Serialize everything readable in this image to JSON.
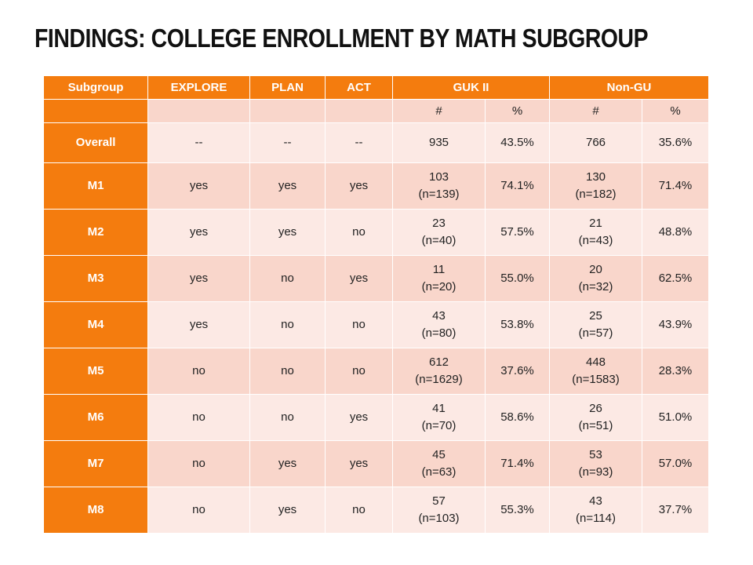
{
  "title": "FINDINGS: COLLEGE ENROLLMENT BY MATH SUBGROUP",
  "headers": [
    "Subgroup",
    "EXPLORE",
    "PLAN",
    "ACT",
    "GUK II",
    "Non-GU"
  ],
  "subheaders": [
    "#",
    "%",
    "#",
    "%"
  ],
  "rows": [
    {
      "label": "Overall",
      "explore": "--",
      "plan": "--",
      "act": "--",
      "gu_count": "935",
      "gu_n": "",
      "gu_pct": "43.5%",
      "ngu_count": "766",
      "ngu_n": "",
      "ngu_pct": "35.6%"
    },
    {
      "label": "M1",
      "explore": "yes",
      "plan": "yes",
      "act": "yes",
      "gu_count": "103",
      "gu_n": "(n=139)",
      "gu_pct": "74.1%",
      "ngu_count": "130",
      "ngu_n": "(n=182)",
      "ngu_pct": "71.4%"
    },
    {
      "label": "M2",
      "explore": "yes",
      "plan": "yes",
      "act": "no",
      "gu_count": "23",
      "gu_n": "(n=40)",
      "gu_pct": "57.5%",
      "ngu_count": "21",
      "ngu_n": "(n=43)",
      "ngu_pct": "48.8%"
    },
    {
      "label": "M3",
      "explore": "yes",
      "plan": "no",
      "act": "yes",
      "gu_count": "11",
      "gu_n": "(n=20)",
      "gu_pct": "55.0%",
      "ngu_count": "20",
      "ngu_n": "(n=32)",
      "ngu_pct": "62.5%"
    },
    {
      "label": "M4",
      "explore": "yes",
      "plan": "no",
      "act": "no",
      "gu_count": "43",
      "gu_n": "(n=80)",
      "gu_pct": "53.8%",
      "ngu_count": "25",
      "ngu_n": "(n=57)",
      "ngu_pct": "43.9%"
    },
    {
      "label": "M5",
      "explore": "no",
      "plan": "no",
      "act": "no",
      "gu_count": "612",
      "gu_n": "(n=1629)",
      "gu_pct": "37.6%",
      "ngu_count": "448",
      "ngu_n": "(n=1583)",
      "ngu_pct": "28.3%"
    },
    {
      "label": "M6",
      "explore": "no",
      "plan": "no",
      "act": "yes",
      "gu_count": "41",
      "gu_n": "(n=70)",
      "gu_pct": "58.6%",
      "ngu_count": "26",
      "ngu_n": "(n=51)",
      "ngu_pct": "51.0%"
    },
    {
      "label": "M7",
      "explore": "no",
      "plan": "yes",
      "act": "yes",
      "gu_count": "45",
      "gu_n": "(n=63)",
      "gu_pct": "71.4%",
      "ngu_count": "53",
      "ngu_n": "(n=93)",
      "ngu_pct": "57.0%"
    },
    {
      "label": "M8",
      "explore": "no",
      "plan": "yes",
      "act": "no",
      "gu_count": "57",
      "gu_n": "(n=103)",
      "gu_pct": "55.3%",
      "ngu_count": "43",
      "ngu_n": "(n=114)",
      "ngu_pct": "37.7%"
    }
  ]
}
